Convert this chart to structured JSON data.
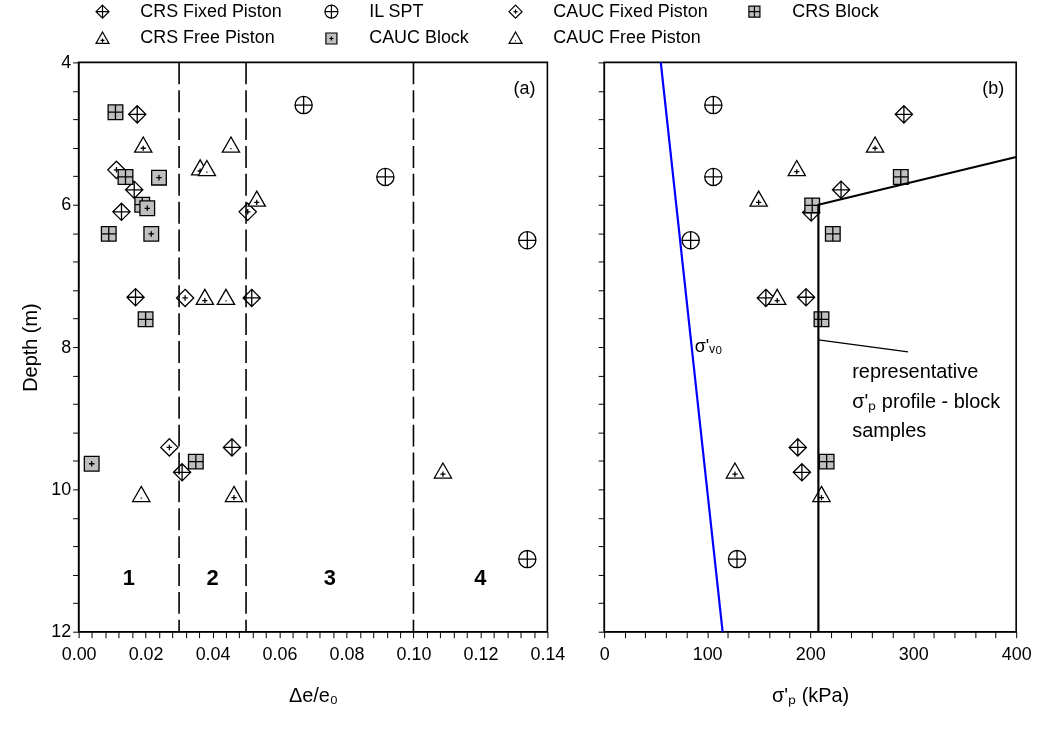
{
  "chart_data": [
    {
      "type": "scatter",
      "xlabel": "Δe/e₀",
      "ylabel": "Depth (m)",
      "legend": "top",
      "xlim": [
        0,
        0.14
      ],
      "ylim": [
        12,
        4
      ],
      "xticks": [
        {
          "value": 0,
          "label": "0.00"
        },
        {
          "value": 0.004,
          "label": null
        },
        {
          "value": 0.008,
          "label": null
        },
        {
          "value": 0.012,
          "label": null
        },
        {
          "value": 0.016,
          "label": null
        },
        0.02,
        {
          "value": 0.024,
          "label": null
        },
        {
          "value": 0.028,
          "label": null
        },
        {
          "value": 0.032,
          "label": null
        },
        {
          "value": 0.036,
          "label": null
        },
        0.04,
        {
          "value": 0.044,
          "label": null
        },
        {
          "value": 0.048,
          "label": null
        },
        {
          "value": 0.052,
          "label": null
        },
        {
          "value": 0.056,
          "label": null
        },
        0.06,
        {
          "value": 0.064,
          "label": null
        },
        {
          "value": 0.068,
          "label": null
        },
        {
          "value": 0.072,
          "label": null
        },
        {
          "value": 0.076,
          "label": null
        },
        0.08,
        {
          "value": 0.084,
          "label": null
        },
        {
          "value": 0.088,
          "label": null
        },
        {
          "value": 0.092,
          "label": null
        },
        {
          "value": 0.096,
          "label": null
        },
        {
          "value": 0.1,
          "label": "0.10"
        },
        {
          "value": 0.104,
          "label": null
        },
        {
          "value": 0.108,
          "label": null
        },
        {
          "value": 0.112,
          "label": null
        },
        {
          "value": 0.116,
          "label": null
        },
        0.12,
        {
          "value": 0.124,
          "label": null
        },
        {
          "value": 0.128,
          "label": null
        },
        {
          "value": 0.132,
          "label": null
        },
        {
          "value": 0.136,
          "label": null
        },
        0.14
      ],
      "yticks": [
        4,
        {
          "value": 4.4,
          "label": null
        },
        {
          "value": 4.8,
          "label": null
        },
        {
          "value": 5.2,
          "label": null
        },
        {
          "value": 5.6,
          "label": null
        },
        6,
        {
          "value": 6.4,
          "label": null
        },
        {
          "value": 6.8,
          "label": null
        },
        {
          "value": 7.2,
          "label": null
        },
        {
          "value": 7.6,
          "label": null
        },
        8,
        {
          "value": 8.4,
          "label": null
        },
        {
          "value": 8.8,
          "label": null
        },
        {
          "value": 9.2,
          "label": null
        },
        {
          "value": 9.6,
          "label": null
        },
        10,
        {
          "value": 10.4,
          "label": null
        },
        {
          "value": 10.8,
          "label": null
        },
        {
          "value": 11.2,
          "label": null
        },
        {
          "value": 11.6,
          "label": null
        },
        12
      ],
      "series": [
        {
          "name": "CRS Fixed Piston",
          "type": "scatter",
          "color": "#ffffff",
          "x": [
            0.0175,
            0.0166,
            0.0128,
            0.017,
            0.0517,
            0.0458,
            0.0309
          ],
          "values": [
            4.73,
            5.79,
            6.1,
            7.3,
            7.31,
            9.41,
            9.76
          ]
        },
        {
          "name": "IL SPT",
          "type": "scatter",
          "color": "#ffffff",
          "x": [
            0.0672,
            0.0916,
            0.134,
            0.134
          ],
          "values": [
            4.6,
            5.61,
            6.5,
            10.98
          ]
        },
        {
          "name": "CAUC Fixed Piston",
          "type": "scatter",
          "color": "#ffffff",
          "x": [
            0.0113,
            0.0505,
            0.0318,
            0.0271
          ],
          "values": [
            5.51,
            6.1,
            7.31,
            9.41
          ]
        },
        {
          "name": "CRS Block",
          "type": "scatter",
          "color": "#bfbfbf",
          "x": [
            0.011,
            0.014,
            0.019,
            0.009,
            0.02,
            0.035
          ],
          "values": [
            4.7,
            5.61,
            6.0,
            6.41,
            7.61,
            9.61
          ]
        },
        {
          "name": "CRS Free Piston",
          "type": "scatter",
          "color": "#ffffff",
          "x": [
            0.0193,
            0.0363,
            0.0532,
            0.0377,
            0.1088,
            0.0464
          ],
          "values": [
            5.17,
            5.49,
            5.93,
            7.31,
            9.75,
            10.08
          ]
        },
        {
          "name": "CAUC Block",
          "type": "scatter",
          "color": "#bfbfbf",
          "x": [
            0.024,
            0.0205,
            0.0217,
            0.0039
          ],
          "values": [
            5.62,
            6.05,
            6.41,
            9.64
          ]
        },
        {
          "name": "CAUC Free Piston",
          "type": "scatter",
          "color": "#ffffff",
          "x": [
            0.0455,
            0.0383,
            0.044,
            0.0187
          ],
          "values": [
            5.17,
            5.5,
            7.31,
            10.08
          ]
        }
      ],
      "ref_lines": [
        {
          "axis": "x",
          "value": 0.03,
          "line_style": "dashed",
          "color": "#000000"
        },
        {
          "axis": "x",
          "value": 0.05,
          "line_style": "dashed",
          "color": "#000000"
        },
        {
          "axis": "x",
          "value": 0.1,
          "line_style": "dashed",
          "color": "#000000"
        }
      ],
      "annotations": [
        "(a)",
        "1",
        "2",
        "3",
        "4"
      ]
    },
    {
      "type": "scatter",
      "xlabel": "σ'ₚ (kPa)",
      "tick_labels": "x",
      "xlim": [
        0,
        400
      ],
      "ylim": [
        12,
        4
      ],
      "xticks": [
        0,
        {
          "value": 20,
          "label": null
        },
        {
          "value": 40,
          "label": null
        },
        {
          "value": 60,
          "label": null
        },
        {
          "value": 80,
          "label": null
        },
        100,
        {
          "value": 120,
          "label": null
        },
        {
          "value": 140,
          "label": null
        },
        {
          "value": 160,
          "label": null
        },
        {
          "value": 180,
          "label": null
        },
        200,
        {
          "value": 220,
          "label": null
        },
        {
          "value": 240,
          "label": null
        },
        {
          "value": 260,
          "label": null
        },
        {
          "value": 280,
          "label": null
        },
        300,
        {
          "value": 320,
          "label": null
        },
        {
          "value": 340,
          "label": null
        },
        {
          "value": 360,
          "label": null
        },
        {
          "value": 380,
          "label": null
        },
        400
      ],
      "yticks": [
        4,
        {
          "value": 4.4,
          "label": null
        },
        {
          "value": 4.8,
          "label": null
        },
        {
          "value": 5.2,
          "label": null
        },
        {
          "value": 5.6,
          "label": null
        },
        6,
        {
          "value": 6.4,
          "label": null
        },
        {
          "value": 6.8,
          "label": null
        },
        {
          "value": 7.2,
          "label": null
        },
        {
          "value": 7.6,
          "label": null
        },
        8,
        {
          "value": 8.4,
          "label": null
        },
        {
          "value": 8.8,
          "label": null
        },
        {
          "value": 9.2,
          "label": null
        },
        {
          "value": 9.6,
          "label": null
        },
        10,
        {
          "value": 10.4,
          "label": null
        },
        {
          "value": 10.8,
          "label": null
        },
        {
          "value": 11.2,
          "label": null
        },
        {
          "value": 11.6,
          "label": null
        },
        12
      ],
      "series": [
        {
          "type": "scatter",
          "color": "#ffffff",
          "x": [
            291,
            230,
            201,
            157,
            196,
            188,
            192
          ],
          "values": [
            4.73,
            5.79,
            6.11,
            7.31,
            7.3,
            9.41,
            9.76
          ]
        },
        {
          "type": "scatter",
          "color": "#ffffff",
          "x": [
            106,
            106,
            84,
            129
          ],
          "values": [
            4.6,
            5.61,
            6.5,
            10.98
          ]
        },
        {
          "type": "scatter",
          "color": "#bfbfbf",
          "x": [
            202,
            222,
            288,
            211,
            216
          ],
          "values": [
            6.01,
            6.41,
            5.61,
            7.61,
            9.61
          ]
        },
        {
          "type": "scatter",
          "color": "#ffffff",
          "x": [
            263,
            187,
            150,
            168,
            127,
            211
          ],
          "values": [
            5.17,
            5.5,
            5.93,
            7.31,
            9.75,
            10.08
          ]
        },
        {
          "name": "σ'ᵥ₀",
          "type": "line",
          "color": "#0000ff",
          "x": [
            55,
            115
          ],
          "values": [
            4,
            12
          ]
        },
        {
          "type": "line",
          "color": "#000000",
          "x": [
            400,
            208,
            208
          ],
          "values": [
            5.33,
            6.0,
            12
          ]
        }
      ],
      "annotations": [
        "(b)",
        {
          "text": "representative\nσ'ₚ profile - block\nsamples",
          "x": 208,
          "y": 7.9
        }
      ]
    }
  ]
}
